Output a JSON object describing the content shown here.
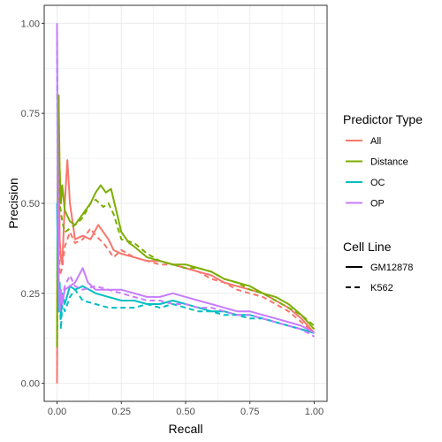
{
  "chart_data": {
    "type": "line",
    "xlabel": "Recall",
    "ylabel": "Precision",
    "xlim": [
      -0.05,
      1.05
    ],
    "ylim": [
      -0.05,
      1.05
    ],
    "x_ticks": [
      "0.00",
      "0.25",
      "0.50",
      "0.75",
      "1.00"
    ],
    "y_ticks": [
      "0.00",
      "0.25",
      "0.50",
      "0.75",
      "1.00"
    ],
    "grid": true,
    "legend_position": "right",
    "legend_color": {
      "title": "Predictor Type",
      "items": [
        {
          "name": "All",
          "color": "#F8766D"
        },
        {
          "name": "Distance",
          "color": "#7CAE00"
        },
        {
          "name": "OC",
          "color": "#00BFC4"
        },
        {
          "name": "OP",
          "color": "#C77CFF"
        }
      ]
    },
    "legend_linetype": {
      "title": "Cell Line",
      "items": [
        {
          "name": "GM12878",
          "linetype": "solid"
        },
        {
          "name": "K562",
          "linetype": "dashed"
        }
      ]
    },
    "series": [
      {
        "name": "All",
        "cell_line": "GM12878",
        "color": "#F8766D",
        "linetype": "solid",
        "points": [
          [
            0.0,
            0.0
          ],
          [
            0.003,
            0.6
          ],
          [
            0.006,
            0.8
          ],
          [
            0.01,
            0.4
          ],
          [
            0.015,
            0.35
          ],
          [
            0.02,
            0.33
          ],
          [
            0.03,
            0.5
          ],
          [
            0.04,
            0.62
          ],
          [
            0.05,
            0.5
          ],
          [
            0.07,
            0.4
          ],
          [
            0.1,
            0.41
          ],
          [
            0.13,
            0.4
          ],
          [
            0.16,
            0.44
          ],
          [
            0.18,
            0.42
          ],
          [
            0.2,
            0.4
          ],
          [
            0.22,
            0.37
          ],
          [
            0.25,
            0.36
          ],
          [
            0.3,
            0.35
          ],
          [
            0.35,
            0.34
          ],
          [
            0.4,
            0.34
          ],
          [
            0.45,
            0.33
          ],
          [
            0.5,
            0.32
          ],
          [
            0.55,
            0.31
          ],
          [
            0.6,
            0.3
          ],
          [
            0.65,
            0.28
          ],
          [
            0.7,
            0.27
          ],
          [
            0.75,
            0.26
          ],
          [
            0.8,
            0.25
          ],
          [
            0.85,
            0.23
          ],
          [
            0.9,
            0.21
          ],
          [
            0.95,
            0.18
          ],
          [
            1.0,
            0.14
          ]
        ]
      },
      {
        "name": "All",
        "cell_line": "K562",
        "color": "#F8766D",
        "linetype": "dashed",
        "points": [
          [
            0.0,
            0.0
          ],
          [
            0.003,
            0.5
          ],
          [
            0.006,
            0.7
          ],
          [
            0.01,
            0.3
          ],
          [
            0.02,
            0.32
          ],
          [
            0.03,
            0.38
          ],
          [
            0.05,
            0.42
          ],
          [
            0.07,
            0.39
          ],
          [
            0.1,
            0.4
          ],
          [
            0.13,
            0.43
          ],
          [
            0.15,
            0.41
          ],
          [
            0.18,
            0.39
          ],
          [
            0.2,
            0.37
          ],
          [
            0.22,
            0.35
          ],
          [
            0.25,
            0.37
          ],
          [
            0.3,
            0.35
          ],
          [
            0.35,
            0.34
          ],
          [
            0.4,
            0.33
          ],
          [
            0.45,
            0.33
          ],
          [
            0.5,
            0.32
          ],
          [
            0.55,
            0.31
          ],
          [
            0.6,
            0.29
          ],
          [
            0.65,
            0.28
          ],
          [
            0.7,
            0.26
          ],
          [
            0.75,
            0.25
          ],
          [
            0.8,
            0.24
          ],
          [
            0.85,
            0.22
          ],
          [
            0.9,
            0.2
          ],
          [
            0.95,
            0.17
          ],
          [
            1.0,
            0.14
          ]
        ]
      },
      {
        "name": "Distance",
        "cell_line": "GM12878",
        "color": "#7CAE00",
        "linetype": "solid",
        "points": [
          [
            0.0,
            0.1
          ],
          [
            0.003,
            0.7
          ],
          [
            0.006,
            0.8
          ],
          [
            0.01,
            0.6
          ],
          [
            0.015,
            0.5
          ],
          [
            0.02,
            0.55
          ],
          [
            0.03,
            0.48
          ],
          [
            0.05,
            0.45
          ],
          [
            0.07,
            0.44
          ],
          [
            0.1,
            0.47
          ],
          [
            0.13,
            0.5
          ],
          [
            0.15,
            0.53
          ],
          [
            0.17,
            0.55
          ],
          [
            0.19,
            0.53
          ],
          [
            0.21,
            0.54
          ],
          [
            0.23,
            0.48
          ],
          [
            0.25,
            0.42
          ],
          [
            0.28,
            0.39
          ],
          [
            0.3,
            0.38
          ],
          [
            0.35,
            0.35
          ],
          [
            0.4,
            0.34
          ],
          [
            0.45,
            0.33
          ],
          [
            0.5,
            0.33
          ],
          [
            0.55,
            0.32
          ],
          [
            0.6,
            0.31
          ],
          [
            0.65,
            0.29
          ],
          [
            0.7,
            0.28
          ],
          [
            0.75,
            0.27
          ],
          [
            0.8,
            0.25
          ],
          [
            0.85,
            0.24
          ],
          [
            0.9,
            0.22
          ],
          [
            0.95,
            0.19
          ],
          [
            1.0,
            0.15
          ]
        ]
      },
      {
        "name": "Distance",
        "cell_line": "K562",
        "color": "#7CAE00",
        "linetype": "dashed",
        "points": [
          [
            0.0,
            0.1
          ],
          [
            0.003,
            0.6
          ],
          [
            0.006,
            0.75
          ],
          [
            0.01,
            0.5
          ],
          [
            0.02,
            0.45
          ],
          [
            0.03,
            0.42
          ],
          [
            0.05,
            0.43
          ],
          [
            0.07,
            0.44
          ],
          [
            0.1,
            0.46
          ],
          [
            0.13,
            0.5
          ],
          [
            0.15,
            0.51
          ],
          [
            0.18,
            0.49
          ],
          [
            0.2,
            0.5
          ],
          [
            0.22,
            0.47
          ],
          [
            0.25,
            0.4
          ],
          [
            0.3,
            0.39
          ],
          [
            0.35,
            0.36
          ],
          [
            0.4,
            0.34
          ],
          [
            0.45,
            0.33
          ],
          [
            0.5,
            0.32
          ],
          [
            0.55,
            0.32
          ],
          [
            0.6,
            0.31
          ],
          [
            0.65,
            0.29
          ],
          [
            0.7,
            0.28
          ],
          [
            0.75,
            0.26
          ],
          [
            0.8,
            0.25
          ],
          [
            0.85,
            0.23
          ],
          [
            0.9,
            0.21
          ],
          [
            0.95,
            0.19
          ],
          [
            1.0,
            0.16
          ]
        ]
      },
      {
        "name": "OC",
        "cell_line": "GM12878",
        "color": "#00BFC4",
        "linetype": "solid",
        "points": [
          [
            0.0,
            0.5
          ],
          [
            0.003,
            0.35
          ],
          [
            0.006,
            0.2
          ],
          [
            0.01,
            0.28
          ],
          [
            0.015,
            0.18
          ],
          [
            0.02,
            0.25
          ],
          [
            0.03,
            0.22
          ],
          [
            0.05,
            0.27
          ],
          [
            0.07,
            0.26
          ],
          [
            0.1,
            0.27
          ],
          [
            0.15,
            0.25
          ],
          [
            0.2,
            0.24
          ],
          [
            0.25,
            0.23
          ],
          [
            0.3,
            0.23
          ],
          [
            0.35,
            0.22
          ],
          [
            0.4,
            0.22
          ],
          [
            0.45,
            0.23
          ],
          [
            0.5,
            0.22
          ],
          [
            0.55,
            0.21
          ],
          [
            0.6,
            0.2
          ],
          [
            0.65,
            0.2
          ],
          [
            0.7,
            0.19
          ],
          [
            0.75,
            0.19
          ],
          [
            0.8,
            0.18
          ],
          [
            0.85,
            0.17
          ],
          [
            0.9,
            0.16
          ],
          [
            0.95,
            0.15
          ],
          [
            1.0,
            0.14
          ]
        ]
      },
      {
        "name": "OC",
        "cell_line": "K562",
        "color": "#00BFC4",
        "linetype": "dashed",
        "points": [
          [
            0.0,
            0.95
          ],
          [
            0.003,
            0.4
          ],
          [
            0.006,
            0.2
          ],
          [
            0.01,
            0.25
          ],
          [
            0.015,
            0.15
          ],
          [
            0.02,
            0.22
          ],
          [
            0.03,
            0.2
          ],
          [
            0.05,
            0.24
          ],
          [
            0.07,
            0.26
          ],
          [
            0.1,
            0.23
          ],
          [
            0.15,
            0.22
          ],
          [
            0.2,
            0.21
          ],
          [
            0.25,
            0.21
          ],
          [
            0.3,
            0.21
          ],
          [
            0.35,
            0.22
          ],
          [
            0.4,
            0.21
          ],
          [
            0.45,
            0.22
          ],
          [
            0.5,
            0.21
          ],
          [
            0.55,
            0.2
          ],
          [
            0.6,
            0.2
          ],
          [
            0.65,
            0.19
          ],
          [
            0.7,
            0.19
          ],
          [
            0.75,
            0.18
          ],
          [
            0.8,
            0.18
          ],
          [
            0.85,
            0.17
          ],
          [
            0.9,
            0.16
          ],
          [
            0.95,
            0.15
          ],
          [
            1.0,
            0.14
          ]
        ]
      },
      {
        "name": "OP",
        "cell_line": "GM12878",
        "color": "#C77CFF",
        "linetype": "solid",
        "points": [
          [
            0.0,
            1.0
          ],
          [
            0.003,
            0.5
          ],
          [
            0.006,
            0.3
          ],
          [
            0.01,
            0.2
          ],
          [
            0.015,
            0.25
          ],
          [
            0.02,
            0.22
          ],
          [
            0.03,
            0.26
          ],
          [
            0.05,
            0.27
          ],
          [
            0.07,
            0.28
          ],
          [
            0.1,
            0.32
          ],
          [
            0.12,
            0.28
          ],
          [
            0.15,
            0.26
          ],
          [
            0.2,
            0.26
          ],
          [
            0.25,
            0.26
          ],
          [
            0.3,
            0.25
          ],
          [
            0.35,
            0.24
          ],
          [
            0.4,
            0.24
          ],
          [
            0.45,
            0.25
          ],
          [
            0.5,
            0.24
          ],
          [
            0.55,
            0.23
          ],
          [
            0.6,
            0.22
          ],
          [
            0.65,
            0.21
          ],
          [
            0.7,
            0.2
          ],
          [
            0.75,
            0.2
          ],
          [
            0.8,
            0.19
          ],
          [
            0.85,
            0.18
          ],
          [
            0.9,
            0.17
          ],
          [
            0.95,
            0.16
          ],
          [
            1.0,
            0.14
          ]
        ]
      },
      {
        "name": "OP",
        "cell_line": "K562",
        "color": "#C77CFF",
        "linetype": "dashed",
        "points": [
          [
            0.0,
            1.0
          ],
          [
            0.003,
            0.6
          ],
          [
            0.006,
            0.3
          ],
          [
            0.01,
            0.22
          ],
          [
            0.015,
            0.26
          ],
          [
            0.02,
            0.24
          ],
          [
            0.03,
            0.27
          ],
          [
            0.05,
            0.3
          ],
          [
            0.07,
            0.27
          ],
          [
            0.1,
            0.26
          ],
          [
            0.15,
            0.27
          ],
          [
            0.2,
            0.26
          ],
          [
            0.25,
            0.25
          ],
          [
            0.3,
            0.24
          ],
          [
            0.35,
            0.23
          ],
          [
            0.4,
            0.23
          ],
          [
            0.45,
            0.22
          ],
          [
            0.5,
            0.22
          ],
          [
            0.55,
            0.21
          ],
          [
            0.6,
            0.21
          ],
          [
            0.65,
            0.2
          ],
          [
            0.7,
            0.19
          ],
          [
            0.75,
            0.19
          ],
          [
            0.8,
            0.18
          ],
          [
            0.85,
            0.17
          ],
          [
            0.9,
            0.16
          ],
          [
            0.95,
            0.15
          ],
          [
            1.0,
            0.13
          ]
        ]
      }
    ]
  }
}
